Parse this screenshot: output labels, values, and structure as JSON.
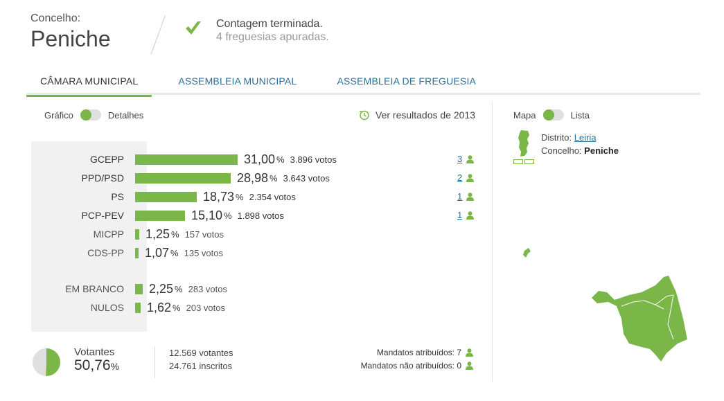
{
  "header": {
    "label": "Concelho:",
    "name": "Peniche",
    "status_title": "Contagem terminada.",
    "status_sub": "4 freguesias apuradas."
  },
  "tabs": [
    {
      "label": "CÂMARA MUNICIPAL"
    },
    {
      "label": "ASSEMBLEIA MUNICIPAL"
    },
    {
      "label": "ASSEMBLEIA DE FREGUESIA"
    }
  ],
  "view_toggle": {
    "left": "Gráfico",
    "right": "Detalhes"
  },
  "prev_results": "Ver resultados de 2013",
  "results": [
    {
      "party": "GCEPP",
      "pct": "31,00",
      "votes": "3.896 votos",
      "seats": "3",
      "share": 31.0
    },
    {
      "party": "PPD/PSD",
      "pct": "28,98",
      "votes": "3.643 votos",
      "seats": "2",
      "share": 28.98
    },
    {
      "party": "PS",
      "pct": "18,73",
      "votes": "2.354 votos",
      "seats": "1",
      "share": 18.73
    },
    {
      "party": "PCP-PEV",
      "pct": "15,10",
      "votes": "1.898 votos",
      "seats": "1",
      "share": 15.1
    },
    {
      "party": "MICPP",
      "pct": "1,25",
      "votes": "157 votos",
      "share": 1.25
    },
    {
      "party": "CDS-PP",
      "pct": "1,07",
      "votes": "135 votos",
      "share": 1.07
    },
    {
      "party": "EM BRANCO",
      "pct": "2,25",
      "votes": "283 votos",
      "share": 2.25
    },
    {
      "party": "NULOS",
      "pct": "1,62",
      "votes": "203 votos",
      "share": 1.62
    }
  ],
  "percent_sign": "%",
  "turnout": {
    "label": "Votantes",
    "value": "50,76",
    "percent_sign": "%",
    "voters": "12.569 votantes",
    "registered": "24.761 inscritos",
    "share": 50.76
  },
  "mandates": {
    "assigned": "Mandatos atribuídos: 7",
    "unassigned": "Mandatos não atribuídos: 0"
  },
  "map_toggle": {
    "left": "Mapa",
    "right": "Lista"
  },
  "location": {
    "district_label": "Distrito:",
    "district": "Leiria",
    "municipality_label": "Concelho:",
    "municipality": "Peniche"
  },
  "colors": {
    "accent": "#7ab648",
    "link": "#2a6f97",
    "panel": "#f1f1f1"
  }
}
